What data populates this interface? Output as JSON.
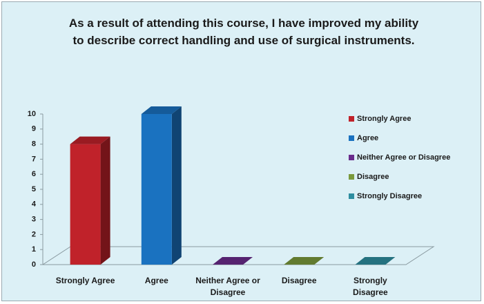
{
  "chart_data": {
    "type": "bar3d",
    "title": "As a result of attending this course, I have improved my ability to describe correct handling and use of surgical instruments.",
    "categories": [
      "Strongly Agree",
      "Agree",
      "Neither Agree or Disagree",
      "Disagree",
      "Strongly Disagree"
    ],
    "values": [
      8,
      10,
      0,
      0,
      0
    ],
    "colors": [
      "#c0222a",
      "#1a72c0",
      "#6a2c8c",
      "#7a9a3c",
      "#2e8ea0"
    ],
    "ylim": [
      0,
      10
    ],
    "yticks": [
      0,
      1,
      2,
      3,
      4,
      5,
      6,
      7,
      8,
      9,
      10
    ],
    "legend": "right"
  }
}
